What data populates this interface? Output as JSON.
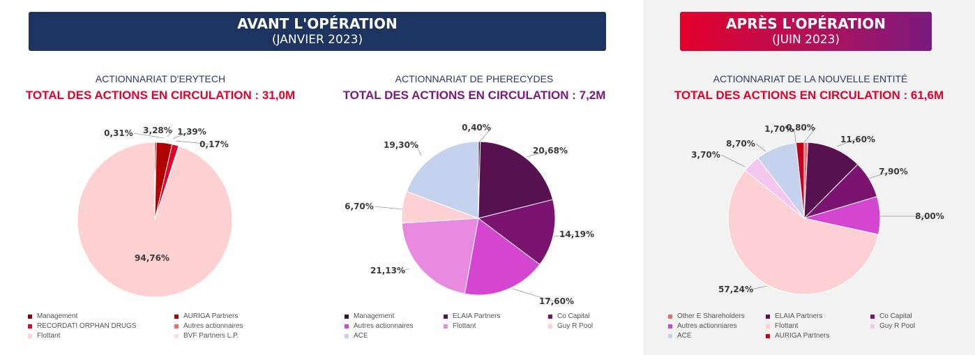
{
  "banners": {
    "before": {
      "line1": "AVANT L'OPÉRATION",
      "line2": "(JANVIER 2023)"
    },
    "after": {
      "line1": "APRÈS L'OPÉRATION",
      "line2": "(JUIN 2023)"
    }
  },
  "colors": {
    "before_banner": "#1d3461",
    "after_banner_start": "#e4002b",
    "after_banner_end": "#7a1a80",
    "red_total": "#e4002b",
    "purple_total": "#7a1a80",
    "right_panel_bg": "#f2f2f2"
  },
  "chart_data": [
    {
      "type": "pie",
      "subtitle": "ACTIONNARIAT D'ERYTECH",
      "title": "TOTAL DES ACTIONS EN CIRCULATION : 31,0M",
      "slices": [
        {
          "name": "Management",
          "value": 0.31,
          "label": "0,31%",
          "color": "#8b0000"
        },
        {
          "name": "AURIGA Partners",
          "value": 3.28,
          "label": "3,28%",
          "color": "#b00000"
        },
        {
          "name": "RECORDATI ORPHAN DRUGS",
          "value": 1.39,
          "label": "1,39%",
          "color": "#e4002b"
        },
        {
          "name": "Autres actionnaires",
          "value": 0.17,
          "label": "0,17%",
          "color": "#f26b6b"
        },
        {
          "name": "Flottant",
          "value": 94.76,
          "label": "94,76%",
          "color": "#ffd0d2"
        },
        {
          "name": "BVF Partners L.P.",
          "value": 0.09,
          "label": "",
          "color": "#ffe0e0"
        }
      ],
      "legend_order": [
        "Management",
        "AURIGA Partners",
        "RECORDATI ORPHAN DRUGS",
        "Autres actionnaires",
        "Flottant",
        "BVF Partners L.P."
      ]
    },
    {
      "type": "pie",
      "subtitle": "ACTIONNARIAT DE PHERECYDES",
      "title": "TOTAL DES ACTIONS EN CIRCULATION : 7,2M",
      "slices": [
        {
          "name": "Management",
          "value": 0.4,
          "label": "0,40%",
          "color": "#2f1240"
        },
        {
          "name": "ELAIA Partners",
          "value": 20.68,
          "label": "20,68%",
          "color": "#571150"
        },
        {
          "name": "Co Capital",
          "value": 14.19,
          "label": "14,19%",
          "color": "#7a1470"
        },
        {
          "name": "Autres actionnaires",
          "value": 17.6,
          "label": "17,60%",
          "color": "#d546d0"
        },
        {
          "name": "Flottant",
          "value": 21.13,
          "label": "21,13%",
          "color": "#e88be0"
        },
        {
          "name": "Guy R Pool",
          "value": 6.7,
          "label": "6,70%",
          "color": "#fdd0d4"
        },
        {
          "name": "ACE",
          "value": 19.3,
          "label": "19,30%",
          "color": "#c5d2ee"
        }
      ],
      "legend_order": [
        "Management",
        "ELAIA Partners",
        "Co Capital",
        "Autres actionnaires",
        "Flottant",
        "Guy R Pool",
        "ACE"
      ]
    },
    {
      "type": "pie",
      "subtitle": "ACTIONNARIAT DE LA NOUVELLE ENTITÉ",
      "title": "TOTAL DES ACTIONS EN CIRCULATION : 61,6M",
      "slices": [
        {
          "name": "Other E Shareholders",
          "value": 0.8,
          "label": "0,80%",
          "color": "#f26b6b"
        },
        {
          "name": "ELAIA Partners",
          "value": 11.6,
          "label": "11,60%",
          "color": "#571150"
        },
        {
          "name": "Co Capital",
          "value": 7.9,
          "label": "7,90%",
          "color": "#7a1470"
        },
        {
          "name": "Autres actionniares",
          "value": 8.0,
          "label": "8,00%",
          "color": "#d546d0"
        },
        {
          "name": "Flottant",
          "value": 57.24,
          "label": "57,24%",
          "color": "#fdd0d4"
        },
        {
          "name": "Guy R Pool",
          "value": 3.7,
          "label": "3,70%",
          "color": "#f5c6ef"
        },
        {
          "name": "ACE",
          "value": 8.7,
          "label": "8,70%",
          "color": "#c5d2ee"
        },
        {
          "name": "AURIGA Partners",
          "value": 1.7,
          "label": "1,70%",
          "color": "#c4001f"
        }
      ],
      "legend_order": [
        "Other E Shareholders",
        "ELAIA Partners",
        "Co Capital",
        "Autres actionniares",
        "Flottant",
        "Guy R Pool",
        "ACE",
        "AURIGA Partners"
      ]
    }
  ]
}
